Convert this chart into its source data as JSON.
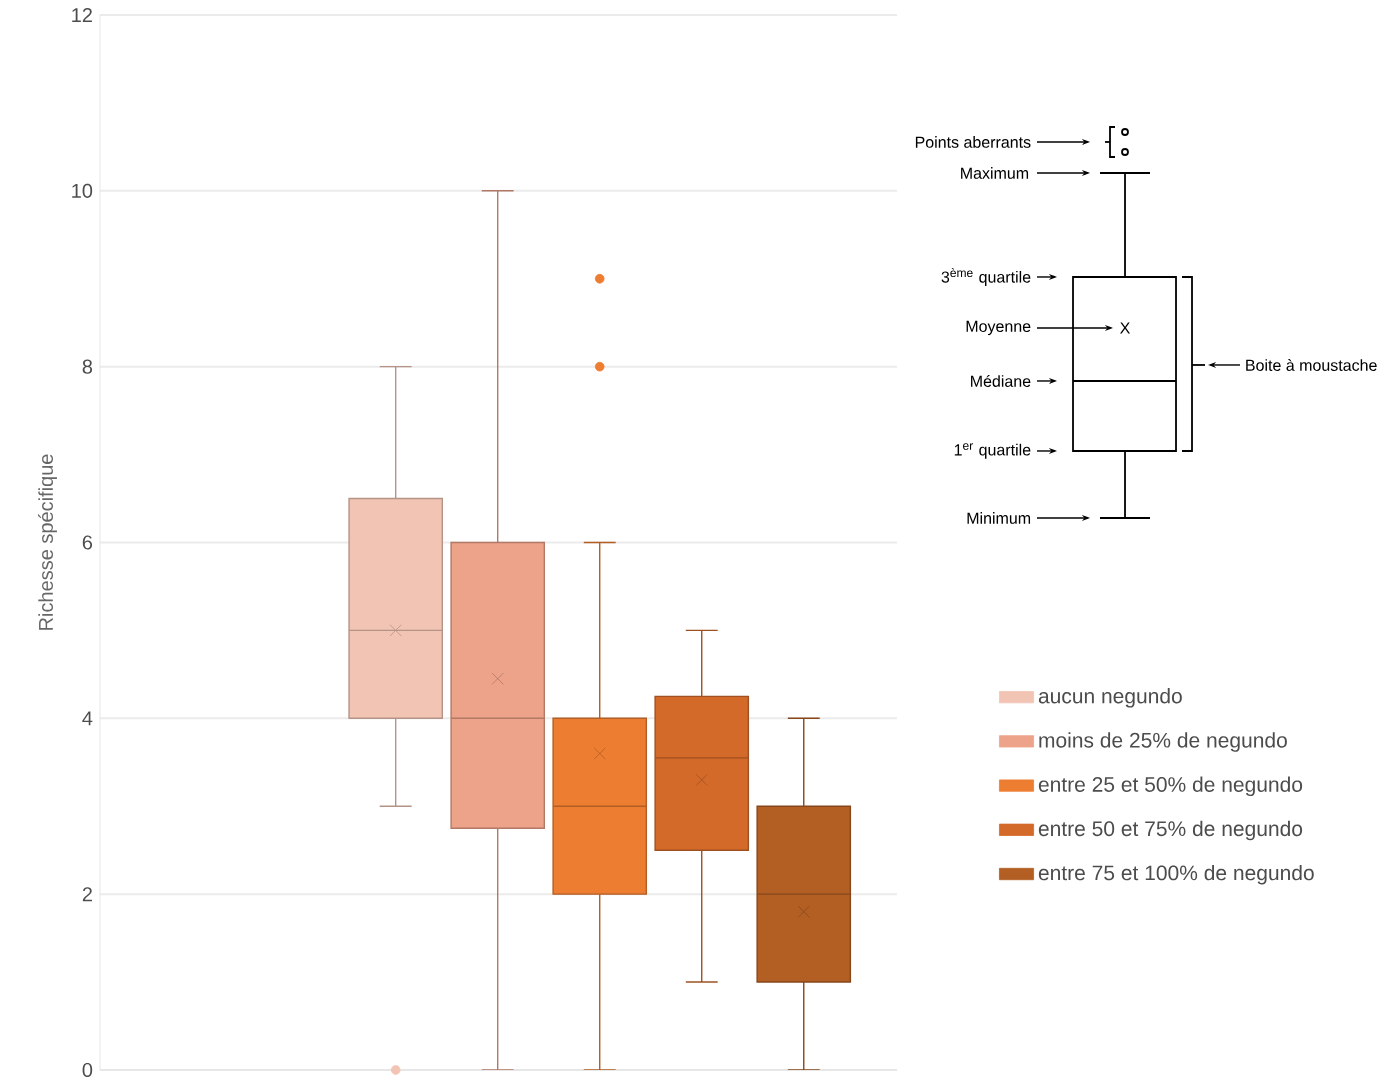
{
  "chart_data": {
    "type": "box",
    "ylabel": "Richesse spécifique",
    "categories": [
      null
    ],
    "ylim": [
      0,
      12
    ],
    "yticks": [
      0,
      2,
      4,
      6,
      8,
      10,
      12
    ],
    "grid": "y",
    "legend": "right",
    "annotations": [
      "Points aberrants",
      "Maximum",
      "3$^{ème}$ quartile",
      "Moyenne",
      "Médiane",
      "1$^{er}$ quartile",
      "Minimum",
      "Boite à moustache",
      "X"
    ],
    "series": [
      {
        "name": "aucun negundo",
        "color": "#f2c4b4",
        "boxes": [
          {
            "low": 3,
            "q1": 4,
            "median": 5,
            "q3": 6.5,
            "high": 8,
            "mean": 5,
            "outliers": [
              0
            ]
          }
        ]
      },
      {
        "name": "moins de 25% de negundo",
        "color": "#eda28a",
        "boxes": [
          {
            "low": 0,
            "q1": 2.75,
            "median": 4,
            "q3": 6,
            "high": 10,
            "mean": 4.45
          }
        ]
      },
      {
        "name": "entre 25 et 50% de negundo",
        "color": "#ed7d31",
        "boxes": [
          {
            "low": 0,
            "q1": 2,
            "median": 3,
            "q3": 4,
            "high": 6,
            "mean": 3.6,
            "outliers": [
              8,
              9
            ]
          }
        ]
      },
      {
        "name": "entre 50 et 75% de negundo",
        "color": "#d46a2a",
        "boxes": [
          {
            "low": 1,
            "q1": 2.5,
            "median": 3.55,
            "q3": 4.25,
            "high": 5,
            "mean": 3.3
          }
        ]
      },
      {
        "name": "entre 75 et 100% de negundo",
        "color": "#b35f24",
        "boxes": [
          {
            "low": 0,
            "q1": 1,
            "median": 2,
            "q3": 3,
            "high": 4,
            "mean": 1.8
          }
        ]
      }
    ]
  }
}
